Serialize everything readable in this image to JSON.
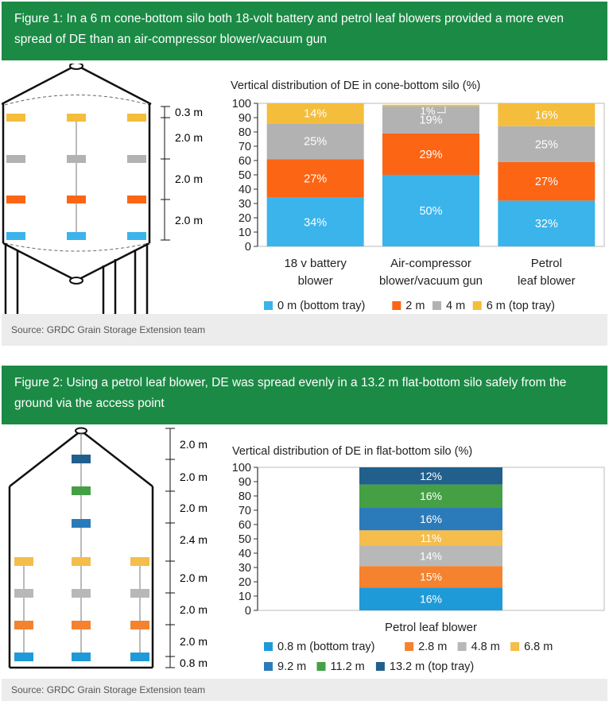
{
  "figure1": {
    "header": "Figure 1: In a 6 m cone-bottom silo both 18-volt battery and petrol leaf blowers provided a more even spread of DE than an air-compressor blower/vacuum gun",
    "source": "Source: GRDC Grain Storage Extension team",
    "silo_labels": [
      "0.3 m",
      "2.0 m",
      "2.0 m",
      "2.0 m"
    ]
  },
  "figure2": {
    "header": "Figure 2: Using a petrol leaf blower, DE was spread evenly in a 13.2 m flat-bottom silo safely from the ground via the access point",
    "source": "Source: GRDC Grain Storage Extension team",
    "silo_labels": [
      "2.0 m",
      "2.0 m",
      "2.0 m",
      "2.4 m",
      "2.0 m",
      "2.0 m",
      "2.0 m",
      "0.8 m"
    ]
  },
  "colors": {
    "c0": "#3ab4ea",
    "c2": "#fb6514",
    "c4": "#b2b2b2",
    "c6": "#f4bd3b",
    "f08": "#1f9ad8",
    "f28": "#f5822f",
    "f48": "#b8b8b8",
    "f68": "#f4bd4c",
    "f92": "#2b7bba",
    "f112": "#45a045",
    "f132": "#215f8c"
  },
  "chart_data": [
    {
      "type": "bar",
      "stacked": true,
      "title": "Vertical distribution of DE in cone-bottom silo (%)",
      "categories": [
        "18 v battery\nblower",
        "Air-compressor\nblower/vacuum gun",
        "Petrol\nleaf blower"
      ],
      "ylim": [
        0,
        100
      ],
      "yticks": [
        0,
        10,
        20,
        30,
        40,
        50,
        60,
        70,
        80,
        90,
        100
      ],
      "series": [
        {
          "name": "0 m (bottom tray)",
          "color": "#3ab4ea",
          "values": [
            34,
            50,
            32
          ],
          "labels": [
            "34%",
            "50%",
            "32%"
          ]
        },
        {
          "name": "2 m",
          "color": "#fb6514",
          "values": [
            27,
            29,
            27
          ],
          "labels": [
            "27%",
            "29%",
            "27%"
          ]
        },
        {
          "name": "4 m",
          "color": "#b2b2b2",
          "values": [
            25,
            19,
            25
          ],
          "labels": [
            "25%",
            "19%",
            "25%"
          ]
        },
        {
          "name": "6 m (top tray)",
          "color": "#f4bd3b",
          "values": [
            14,
            1,
            16
          ],
          "labels": [
            "14%",
            "1%",
            "16%"
          ]
        }
      ],
      "legend": "bottom"
    },
    {
      "type": "bar",
      "stacked": true,
      "title": "Vertical distribution of DE in flat-bottom silo (%)",
      "categories": [
        "Petrol leaf blower"
      ],
      "ylim": [
        0,
        100
      ],
      "yticks": [
        0,
        10,
        20,
        30,
        40,
        50,
        60,
        70,
        80,
        90,
        100
      ],
      "series": [
        {
          "name": "0.8 m (bottom tray)",
          "color": "#1f9ad8",
          "values": [
            16
          ],
          "labels": [
            "16%"
          ]
        },
        {
          "name": "2.8 m",
          "color": "#f5822f",
          "values": [
            15
          ],
          "labels": [
            "15%"
          ]
        },
        {
          "name": "4.8 m",
          "color": "#b8b8b8",
          "values": [
            14
          ],
          "labels": [
            "14%"
          ]
        },
        {
          "name": "6.8 m",
          "color": "#f4bd4c",
          "values": [
            11
          ],
          "labels": [
            "11%"
          ]
        },
        {
          "name": "9.2 m",
          "color": "#2b7bba",
          "values": [
            16
          ],
          "labels": [
            "16%"
          ]
        },
        {
          "name": "11.2 m",
          "color": "#45a045",
          "values": [
            16
          ],
          "labels": [
            "16%"
          ]
        },
        {
          "name": "13.2 m (top tray)",
          "color": "#215f8c",
          "values": [
            12
          ],
          "labels": [
            "12%"
          ]
        }
      ],
      "legend": "bottom"
    }
  ]
}
